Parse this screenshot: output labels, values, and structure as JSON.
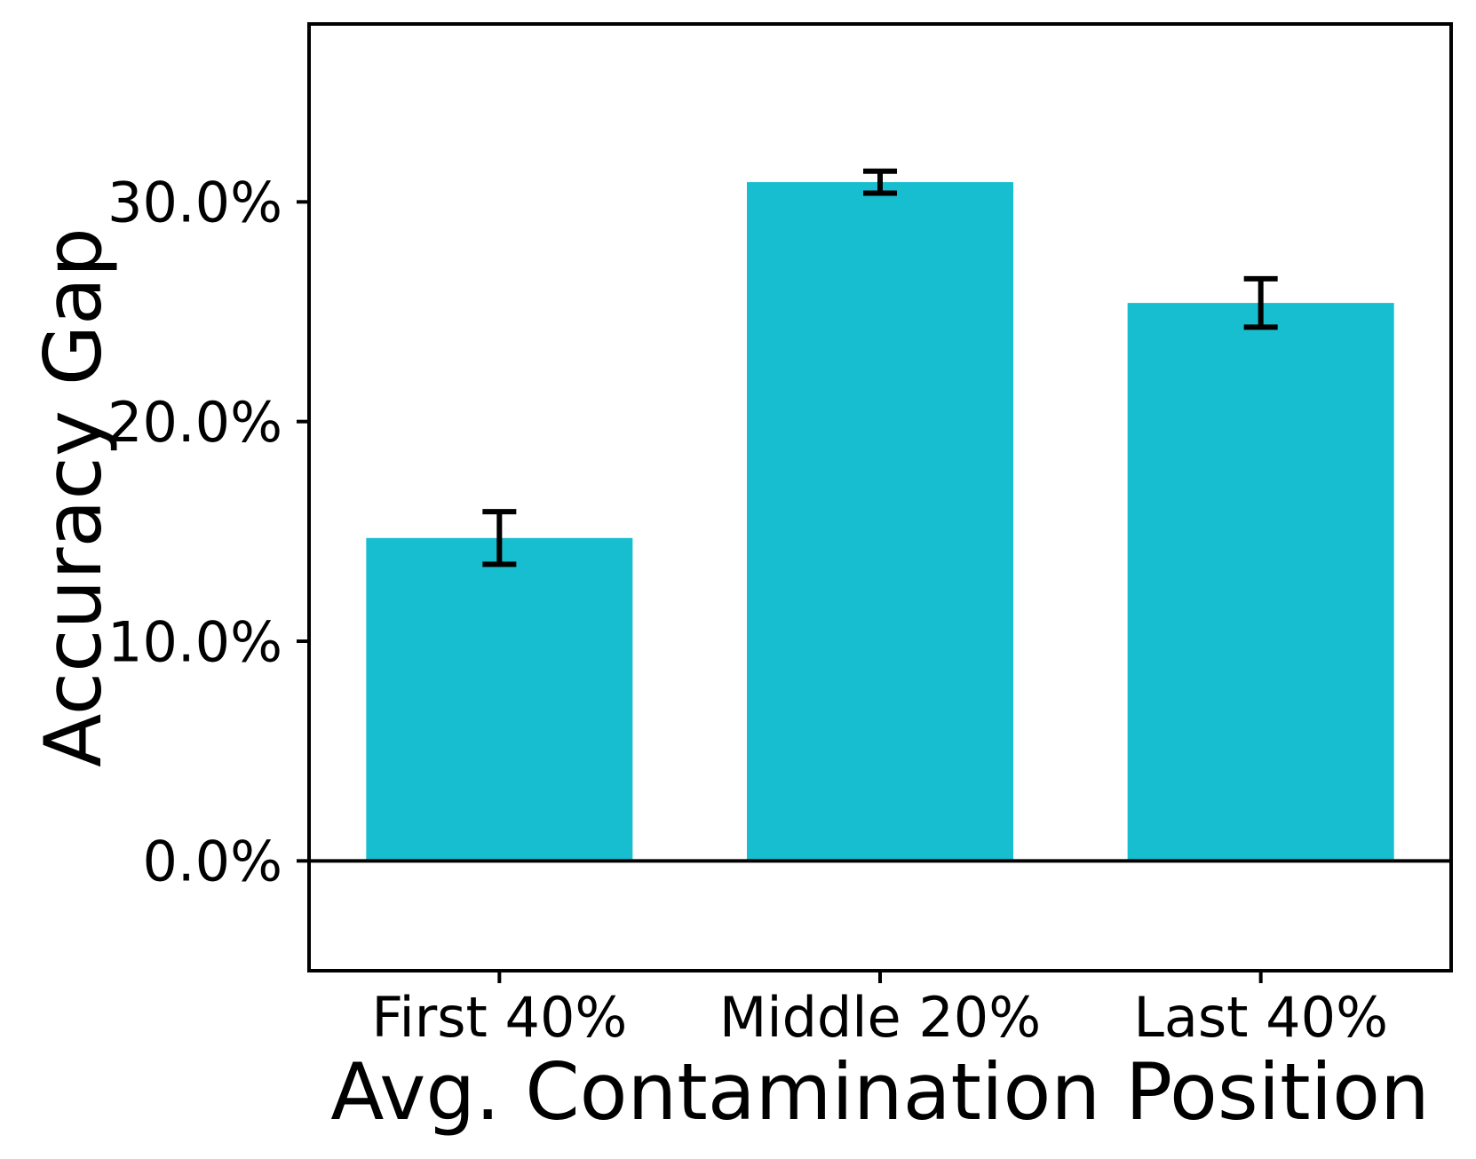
{
  "figure": {
    "background": "#ffffff"
  },
  "chart_data": {
    "type": "bar",
    "title": "",
    "xlabel": "Avg. Contamination Position",
    "ylabel": "Accuracy Gap",
    "categories": [
      "First 40%",
      "Middle 20%",
      "Last 40%"
    ],
    "values": [
      14.7,
      30.9,
      25.4
    ],
    "errors": [
      1.2,
      0.5,
      1.1
    ],
    "value_unit": "%",
    "bar_color": "#17becf",
    "error_bar_color": "#000000",
    "axis_color": "#000000",
    "ylim": [
      -5.0,
      38.1
    ],
    "yticks": [
      0,
      10,
      20,
      30
    ],
    "ytick_labels": [
      "0.0%",
      "10.0%",
      "20.0%",
      "30.0%"
    ],
    "xlim_units": [
      -0.5,
      2.5
    ],
    "bar_width_units": 0.7,
    "baseline_at_zero": true,
    "grid": false,
    "legend_position": "none"
  }
}
